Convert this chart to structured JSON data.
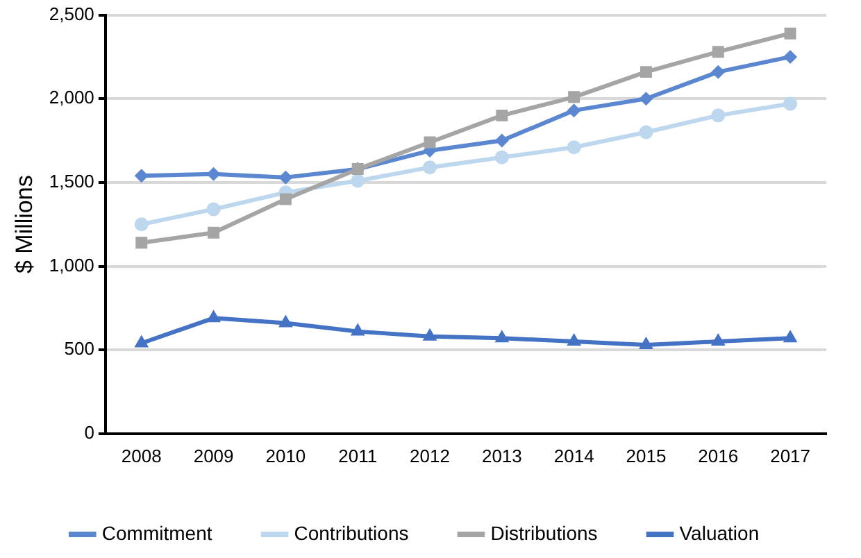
{
  "chart_data": {
    "type": "line",
    "ylabel": "$ Millions",
    "categories": [
      "2008",
      "2009",
      "2010",
      "2011",
      "2012",
      "2013",
      "2014",
      "2015",
      "2016",
      "2017"
    ],
    "series": [
      {
        "name": "Commitment",
        "color": "#5b86d0",
        "marker": "diamond",
        "values": [
          1540,
          1550,
          1530,
          1580,
          1690,
          1750,
          1930,
          2000,
          2160,
          2250
        ]
      },
      {
        "name": "Contributions",
        "color": "#bdd7ee",
        "marker": "circle",
        "values": [
          1250,
          1340,
          1440,
          1510,
          1590,
          1650,
          1710,
          1800,
          1900,
          1970
        ]
      },
      {
        "name": "Distributions",
        "color": "#a5a5a5",
        "marker": "square",
        "values": [
          1140,
          1200,
          1400,
          1580,
          1740,
          1900,
          2010,
          2160,
          2280,
          2390
        ]
      },
      {
        "name": "Valuation",
        "color": "#4472c4",
        "marker": "triangle",
        "values": [
          540,
          690,
          660,
          610,
          580,
          570,
          550,
          530,
          550,
          570
        ]
      }
    ],
    "ylim": [
      0,
      2500
    ],
    "yticks": [
      {
        "value": 0,
        "label": "0"
      },
      {
        "value": 500,
        "label": "500"
      },
      {
        "value": 1000,
        "label": "1,000"
      },
      {
        "value": 1500,
        "label": "1,500"
      },
      {
        "value": 2000,
        "label": "2,000"
      },
      {
        "value": 2500,
        "label": "2,500"
      }
    ],
    "grid": "y",
    "legend": "bottom"
  }
}
